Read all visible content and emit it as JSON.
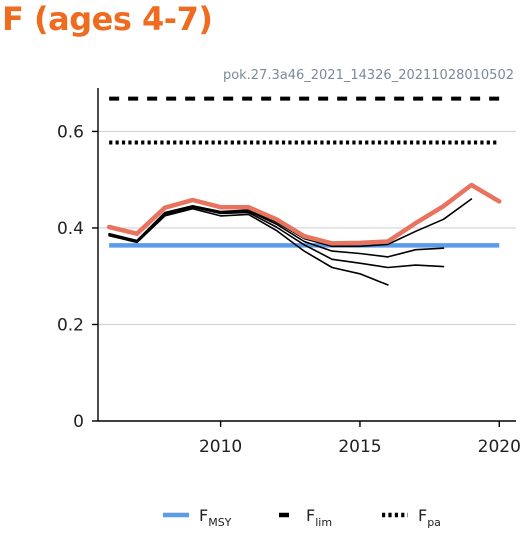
{
  "header": {
    "title": "F (ages 4-7)",
    "title_color": "#ee6b1f",
    "caption": "pok.27.3a46_2021_14326_20211028010502"
  },
  "chart_data": {
    "type": "line",
    "title": "F (ages 4-7)",
    "xlabel": "",
    "ylabel": "",
    "xlim": [
      2005.6,
      2020.6
    ],
    "ylim": [
      0,
      0.69
    ],
    "xticks": [
      2010,
      2015,
      2020
    ],
    "yticks": [
      0,
      0.2,
      0.4,
      0.6
    ],
    "ytick_labels": [
      "0",
      "0.2",
      "0.4",
      "0.6"
    ],
    "grid": "horizontal",
    "reference_lines": [
      {
        "key": "fmsy",
        "value": 0.364,
        "color": "#5b9bea",
        "style": "solid"
      },
      {
        "key": "flim",
        "value": 0.668,
        "color": "#000000",
        "style": "dashed"
      },
      {
        "key": "fpa",
        "value": 0.577,
        "color": "#000000",
        "style": "dotted"
      }
    ],
    "series": [
      {
        "color": "#000000",
        "width": 1.6,
        "x": [
          2006,
          2007,
          2008,
          2009,
          2010,
          2011,
          2012,
          2013,
          2014,
          2015,
          2016
        ],
        "y": [
          0.384,
          0.37,
          0.425,
          0.44,
          0.425,
          0.428,
          0.395,
          0.352,
          0.318,
          0.305,
          0.282
        ]
      },
      {
        "color": "#000000",
        "width": 1.6,
        "x": [
          2006,
          2007,
          2008,
          2009,
          2010,
          2011,
          2012,
          2013,
          2014,
          2015,
          2016,
          2017,
          2018
        ],
        "y": [
          0.386,
          0.372,
          0.428,
          0.443,
          0.43,
          0.432,
          0.402,
          0.365,
          0.335,
          0.327,
          0.318,
          0.323,
          0.32
        ]
      },
      {
        "color": "#000000",
        "width": 1.6,
        "x": [
          2006,
          2007,
          2008,
          2009,
          2010,
          2011,
          2012,
          2013,
          2014,
          2015,
          2016,
          2017,
          2018
        ],
        "y": [
          0.387,
          0.373,
          0.43,
          0.444,
          0.432,
          0.435,
          0.408,
          0.372,
          0.352,
          0.347,
          0.34,
          0.355,
          0.358
        ]
      },
      {
        "color": "#000000",
        "width": 1.6,
        "x": [
          2006,
          2007,
          2008,
          2009,
          2010,
          2011,
          2012,
          2013,
          2014,
          2015,
          2016,
          2017,
          2018,
          2019
        ],
        "y": [
          0.388,
          0.374,
          0.432,
          0.446,
          0.434,
          0.437,
          0.412,
          0.378,
          0.362,
          0.362,
          0.366,
          0.393,
          0.418,
          0.46
        ]
      },
      {
        "color": "#e8735e",
        "width": 4.5,
        "x": [
          2006,
          2007,
          2008,
          2009,
          2010,
          2011,
          2012,
          2013,
          2014,
          2015,
          2016,
          2017,
          2018,
          2019,
          2020
        ],
        "y": [
          0.402,
          0.388,
          0.442,
          0.458,
          0.443,
          0.443,
          0.418,
          0.383,
          0.368,
          0.369,
          0.372,
          0.41,
          0.445,
          0.489,
          0.455
        ]
      }
    ],
    "legend": {
      "placement": "bottom",
      "entries": [
        {
          "key": "fmsy",
          "base": "F",
          "sub": "MSY",
          "color": "#5b9bea",
          "style": "solid"
        },
        {
          "key": "flim",
          "base": "F",
          "sub": "lim",
          "color": "#000000",
          "style": "dashed"
        },
        {
          "key": "fpa",
          "base": "F",
          "sub": "pa",
          "color": "#000000",
          "style": "dotted"
        }
      ]
    }
  }
}
